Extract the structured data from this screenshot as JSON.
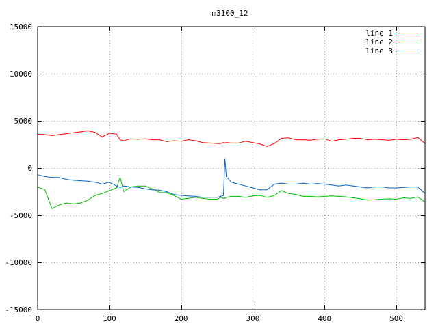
{
  "chart_data": {
    "type": "line",
    "title": "m3100_12",
    "xlabel": "",
    "ylabel": "",
    "xlim": [
      0,
      540
    ],
    "ylim": [
      -15000,
      15000
    ],
    "x_ticks": [
      0,
      100,
      200,
      300,
      400,
      500
    ],
    "x_tick_labels": [
      "0",
      "100",
      "200",
      "300",
      "400",
      "500"
    ],
    "y_ticks": [
      -15000,
      -10000,
      -5000,
      0,
      5000,
      10000,
      15000
    ],
    "y_tick_labels": [
      "-15000",
      "-10000",
      "-5000",
      "0",
      "5000",
      "10000",
      "15000"
    ],
    "grid": true,
    "legend_position": "top-right",
    "x": [
      0,
      10,
      20,
      30,
      40,
      50,
      60,
      70,
      80,
      90,
      100,
      110,
      115,
      120,
      130,
      140,
      150,
      160,
      170,
      180,
      190,
      200,
      210,
      220,
      230,
      240,
      250,
      255,
      259,
      261,
      263,
      270,
      280,
      290,
      300,
      310,
      320,
      330,
      340,
      350,
      360,
      370,
      380,
      390,
      400,
      410,
      420,
      430,
      440,
      450,
      460,
      470,
      480,
      490,
      500,
      510,
      520,
      530,
      540
    ],
    "series": [
      {
        "name": "line 1",
        "color": "#ff0000",
        "values": [
          3600,
          3550,
          3450,
          3550,
          3650,
          3750,
          3850,
          3950,
          3800,
          3300,
          3700,
          3600,
          3000,
          2900,
          3100,
          3050,
          3100,
          3000,
          3000,
          2800,
          2900,
          2850,
          3000,
          2900,
          2700,
          2650,
          2600,
          2600,
          2700,
          2650,
          2700,
          2650,
          2650,
          2850,
          2700,
          2550,
          2300,
          2600,
          3150,
          3200,
          3000,
          3000,
          2950,
          3050,
          3100,
          2850,
          3000,
          3050,
          3150,
          3150,
          3000,
          3050,
          3000,
          2950,
          3050,
          3000,
          3050,
          3250,
          2600
        ]
      },
      {
        "name": "line 2",
        "color": "#00c000",
        "values": [
          -2000,
          -2300,
          -4300,
          -3900,
          -3700,
          -3800,
          -3700,
          -3400,
          -2900,
          -2700,
          -2400,
          -2100,
          -1000,
          -2500,
          -2000,
          -1900,
          -1900,
          -2200,
          -2600,
          -2600,
          -2900,
          -3300,
          -3200,
          -3100,
          -3200,
          -3300,
          -3300,
          -3100,
          -3200,
          -3200,
          -3100,
          -3000,
          -3000,
          -3100,
          -2950,
          -2900,
          -3100,
          -2900,
          -2400,
          -2700,
          -2800,
          -3000,
          -3000,
          -3050,
          -3000,
          -2950,
          -3000,
          -3050,
          -3150,
          -3250,
          -3400,
          -3350,
          -3300,
          -3250,
          -3300,
          -3150,
          -3200,
          -3050,
          -3600
        ]
      },
      {
        "name": "line 3",
        "color": "#0066cc",
        "values": [
          -700,
          -900,
          -1000,
          -1000,
          -1200,
          -1300,
          -1350,
          -1400,
          -1500,
          -1700,
          -1500,
          -1900,
          -2050,
          -1900,
          -2000,
          -2050,
          -2200,
          -2300,
          -2350,
          -2500,
          -2800,
          -2900,
          -2950,
          -3000,
          -3100,
          -3100,
          -3100,
          -3000,
          -2900,
          1000,
          -900,
          -1500,
          -1700,
          -1900,
          -2100,
          -2300,
          -2300,
          -1700,
          -1600,
          -1700,
          -1700,
          -1600,
          -1700,
          -1650,
          -1700,
          -1800,
          -1900,
          -1800,
          -1900,
          -2000,
          -2100,
          -2000,
          -2000,
          -2100,
          -2100,
          -2050,
          -2000,
          -2000,
          -2700
        ]
      }
    ]
  }
}
